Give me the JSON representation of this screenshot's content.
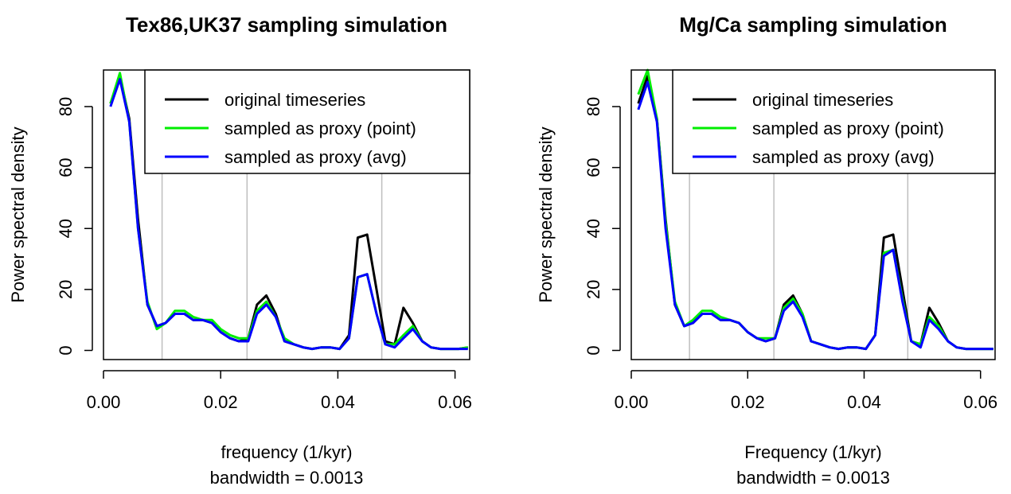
{
  "chart_data": [
    {
      "type": "line",
      "title": "Tex86,UK37 sampling simulation",
      "xlabel": "frequency (1/kyr)",
      "xlabel2": "bandwidth = 0.0013",
      "ylabel": "Power spectral density",
      "xlim": [
        0.0,
        0.0625
      ],
      "ylim": [
        -3,
        92
      ],
      "x_ticks": [
        0.0,
        0.02,
        0.04,
        0.06
      ],
      "x_tick_labels": [
        "0.00",
        "0.02",
        "0.04",
        "0.06"
      ],
      "y_ticks": [
        0,
        20,
        40,
        60,
        80
      ],
      "y_tick_labels": [
        "0",
        "20",
        "40",
        "60",
        "80"
      ],
      "vlines": [
        0.01,
        0.0245,
        0.0475
      ],
      "legend_position": "top-right",
      "series": [
        {
          "name": "original timeseries",
          "color": "#000000",
          "x": [
            0.0012,
            0.0028,
            0.0044,
            0.0059,
            0.0075,
            0.0091,
            0.0106,
            0.0122,
            0.0138,
            0.0153,
            0.0169,
            0.0185,
            0.02,
            0.0216,
            0.0231,
            0.0247,
            0.0262,
            0.0278,
            0.0294,
            0.0309,
            0.0325,
            0.0341,
            0.0356,
            0.0372,
            0.0387,
            0.0403,
            0.0419,
            0.0434,
            0.045,
            0.0466,
            0.0481,
            0.0497,
            0.0512,
            0.0528,
            0.0544,
            0.0559,
            0.0575,
            0.0591,
            0.0606,
            0.0622
          ],
          "y": [
            81,
            90,
            76,
            43,
            15,
            8,
            9,
            12,
            12,
            10,
            10,
            9,
            6,
            4,
            3,
            4,
            15,
            18,
            12,
            3,
            2,
            1,
            0.5,
            1,
            1,
            0.5,
            5,
            37,
            38,
            20,
            3,
            2,
            14,
            9,
            3,
            1,
            0.5,
            0.5,
            0.5,
            1
          ]
        },
        {
          "name": "sampled as proxy (point)",
          "color": "#00ee00",
          "x": [
            0.0012,
            0.0028,
            0.0044,
            0.0059,
            0.0075,
            0.0091,
            0.0106,
            0.0122,
            0.0138,
            0.0153,
            0.0169,
            0.0185,
            0.02,
            0.0216,
            0.0231,
            0.0247,
            0.0262,
            0.0278,
            0.0294,
            0.0309,
            0.0325,
            0.0341,
            0.0356,
            0.0372,
            0.0387,
            0.0403,
            0.0419,
            0.0434,
            0.045,
            0.0466,
            0.0481,
            0.0497,
            0.0512,
            0.0528,
            0.0544,
            0.0559,
            0.0575,
            0.0591,
            0.0606,
            0.0622
          ],
          "y": [
            81,
            91,
            75,
            40,
            16,
            7,
            9,
            13,
            13,
            11,
            10,
            10,
            7,
            5,
            4,
            4,
            13,
            16,
            11,
            4,
            2,
            1,
            0.5,
            1,
            1,
            0.5,
            4,
            24,
            25,
            12,
            2,
            2,
            5,
            8,
            3,
            1,
            0.5,
            0.5,
            0.5,
            1
          ]
        },
        {
          "name": "sampled as proxy (avg)",
          "color": "#0000ff",
          "x": [
            0.0012,
            0.0028,
            0.0044,
            0.0059,
            0.0075,
            0.0091,
            0.0106,
            0.0122,
            0.0138,
            0.0153,
            0.0169,
            0.0185,
            0.02,
            0.0216,
            0.0231,
            0.0247,
            0.0262,
            0.0278,
            0.0294,
            0.0309,
            0.0325,
            0.0341,
            0.0356,
            0.0372,
            0.0387,
            0.0403,
            0.0419,
            0.0434,
            0.045,
            0.0466,
            0.0481,
            0.0497,
            0.0512,
            0.0528,
            0.0544,
            0.0559,
            0.0575,
            0.0591,
            0.0606,
            0.0622
          ],
          "y": [
            80,
            89,
            75,
            40,
            15,
            8,
            9,
            12,
            12,
            10,
            10,
            9,
            6,
            4,
            3,
            3,
            12,
            15,
            11,
            3,
            2,
            1,
            0.5,
            1,
            1,
            0.5,
            4,
            24,
            25,
            12,
            2,
            1,
            4,
            7,
            3,
            1,
            0.5,
            0.5,
            0.5,
            0.5
          ]
        }
      ]
    },
    {
      "type": "line",
      "title": "Mg/Ca sampling simulation",
      "xlabel": "Frequency (1/kyr)",
      "xlabel2": "bandwidth = 0.0013",
      "ylabel": "Power spectral density",
      "xlim": [
        0.0,
        0.0625
      ],
      "ylim": [
        -3,
        92
      ],
      "x_ticks": [
        0.0,
        0.02,
        0.04,
        0.06
      ],
      "x_tick_labels": [
        "0.00",
        "0.02",
        "0.04",
        "0.06"
      ],
      "y_ticks": [
        0,
        20,
        40,
        60,
        80
      ],
      "y_tick_labels": [
        "0",
        "20",
        "40",
        "60",
        "80"
      ],
      "vlines": [
        0.01,
        0.0245,
        0.0475
      ],
      "legend_position": "top-right",
      "series": [
        {
          "name": "original timeseries",
          "color": "#000000",
          "x": [
            0.0012,
            0.0028,
            0.0044,
            0.0059,
            0.0075,
            0.0091,
            0.0106,
            0.0122,
            0.0138,
            0.0153,
            0.0169,
            0.0185,
            0.02,
            0.0216,
            0.0231,
            0.0247,
            0.0262,
            0.0278,
            0.0294,
            0.0309,
            0.0325,
            0.0341,
            0.0356,
            0.0372,
            0.0387,
            0.0403,
            0.0419,
            0.0434,
            0.045,
            0.0466,
            0.0481,
            0.0497,
            0.0512,
            0.0528,
            0.0544,
            0.0559,
            0.0575,
            0.0591,
            0.0606,
            0.0622
          ],
          "y": [
            81,
            90,
            76,
            43,
            15,
            8,
            9,
            12,
            12,
            10,
            10,
            9,
            6,
            4,
            3,
            4,
            15,
            18,
            12,
            3,
            2,
            1,
            0.5,
            1,
            1,
            0.5,
            5,
            37,
            38,
            20,
            3,
            2,
            14,
            9,
            3,
            1,
            0.5,
            0.5,
            0.5,
            0.5
          ]
        },
        {
          "name": "sampled as proxy (point)",
          "color": "#00ee00",
          "x": [
            0.0012,
            0.0028,
            0.0044,
            0.0059,
            0.0075,
            0.0091,
            0.0106,
            0.0122,
            0.0138,
            0.0153,
            0.0169,
            0.0185,
            0.02,
            0.0216,
            0.0231,
            0.0247,
            0.0262,
            0.0278,
            0.0294,
            0.0309,
            0.0325,
            0.0341,
            0.0356,
            0.0372,
            0.0387,
            0.0403,
            0.0419,
            0.0434,
            0.045,
            0.0466,
            0.0481,
            0.0497,
            0.0512,
            0.0528,
            0.0544,
            0.0559,
            0.0575,
            0.0591,
            0.0606,
            0.0622
          ],
          "y": [
            84,
            92,
            76,
            42,
            16,
            8,
            10,
            13,
            13,
            11,
            10,
            9,
            6,
            4,
            4,
            4,
            14,
            17,
            12,
            3,
            2,
            1,
            0.5,
            1,
            1,
            0.5,
            5,
            32,
            33,
            17,
            3,
            2,
            11,
            8,
            3,
            1,
            0.5,
            0.5,
            0.5,
            0.5
          ]
        },
        {
          "name": "sampled as proxy (avg)",
          "color": "#0000ff",
          "x": [
            0.0012,
            0.0028,
            0.0044,
            0.0059,
            0.0075,
            0.0091,
            0.0106,
            0.0122,
            0.0138,
            0.0153,
            0.0169,
            0.0185,
            0.02,
            0.0216,
            0.0231,
            0.0247,
            0.0262,
            0.0278,
            0.0294,
            0.0309,
            0.0325,
            0.0341,
            0.0356,
            0.0372,
            0.0387,
            0.0403,
            0.0419,
            0.0434,
            0.045,
            0.0466,
            0.0481,
            0.0497,
            0.0512,
            0.0528,
            0.0544,
            0.0559,
            0.0575,
            0.0591,
            0.0606,
            0.0622
          ],
          "y": [
            79,
            88,
            75,
            40,
            15,
            8,
            9,
            12,
            12,
            10,
            10,
            9,
            6,
            4,
            3,
            4,
            13,
            16,
            11,
            3,
            2,
            1,
            0.5,
            1,
            1,
            0.5,
            5,
            31,
            33,
            16,
            3,
            1,
            10,
            7,
            3,
            1,
            0.5,
            0.5,
            0.5,
            0.5
          ]
        }
      ]
    }
  ]
}
